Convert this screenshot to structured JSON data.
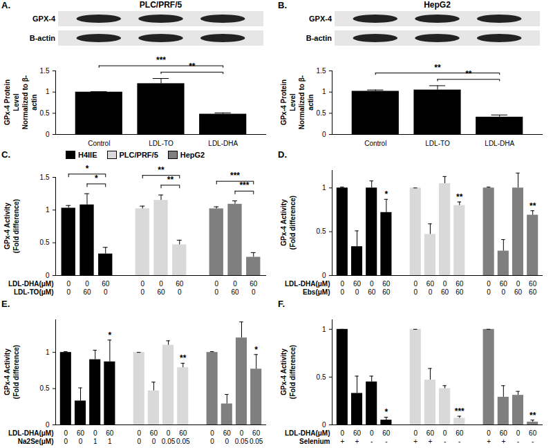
{
  "chart_data": [
    {
      "panel": "A.",
      "type": "bar",
      "title": "PLC/PRF/5",
      "blot_labels": [
        "GPX-4",
        "B-actin"
      ],
      "y_label": "GPx-4 Protein Level\nNormalized to β-actin",
      "categories": [
        "Control",
        "LDL-TO",
        "LDL-DHA"
      ],
      "values": [
        1.0,
        1.2,
        0.48
      ],
      "errors": [
        0.01,
        0.12,
        0.03
      ],
      "color": "#000000",
      "ylim": [
        0,
        1.5
      ],
      "yticks": [
        0,
        0.5,
        1,
        1.5
      ],
      "significance": [
        {
          "from": 0,
          "to": 2,
          "label": "***"
        },
        {
          "from": 1,
          "to": 2,
          "label": "**"
        }
      ]
    },
    {
      "panel": "B.",
      "type": "bar",
      "title": "HepG2",
      "blot_labels": [
        "GPX-4",
        "B-actin"
      ],
      "y_label": "GPx-4 Protein Level\nNormalized to β-actin",
      "categories": [
        "Control",
        "LDL-TO",
        "LDL-DHA"
      ],
      "values": [
        1.02,
        1.05,
        0.41
      ],
      "errors": [
        0.03,
        0.1,
        0.05
      ],
      "color": "#000000",
      "ylim": [
        0,
        1.5
      ],
      "yticks": [
        0,
        0.5,
        1,
        1.5
      ],
      "significance": [
        {
          "from": 0,
          "to": 2,
          "label": "**"
        },
        {
          "from": 1,
          "to": 2,
          "label": "**"
        }
      ]
    },
    {
      "panel": "C.",
      "type": "bar",
      "y_label": "GPx-4 Activity\n(Fold difference)",
      "legend": "top",
      "condition_labels": [
        "LDL-DHA(μM)",
        "LDL-TO(μM)"
      ],
      "ylim": [
        0,
        1.5
      ],
      "yticks": [
        0,
        0.5,
        1,
        1.5
      ],
      "series": [
        {
          "name": "H4IIE",
          "color": "#000000",
          "values": [
            1.03,
            1.08,
            0.33
          ],
          "errors": [
            0.04,
            0.17,
            0.1
          ],
          "conditions": [
            [
              "0",
              "0",
              "60"
            ],
            [
              "0",
              "60",
              "0"
            ]
          ],
          "significance": [
            {
              "from": 0,
              "to": 2,
              "label": "*"
            },
            {
              "from": 1,
              "to": 2,
              "label": "*"
            }
          ]
        },
        {
          "name": "PLC/PRF/5",
          "color": "#d9d9d9",
          "values": [
            1.02,
            1.15,
            0.47
          ],
          "errors": [
            0.04,
            0.08,
            0.07
          ],
          "conditions": [
            [
              "0",
              "0",
              "60"
            ],
            [
              "0",
              "60",
              "0"
            ]
          ],
          "significance": [
            {
              "from": 0,
              "to": 2,
              "label": "**"
            },
            {
              "from": 1,
              "to": 2,
              "label": "**"
            }
          ]
        },
        {
          "name": "HepG2",
          "color": "#7f7f7f",
          "values": [
            1.02,
            1.09,
            0.28
          ],
          "errors": [
            0.03,
            0.05,
            0.07
          ],
          "conditions": [
            [
              "0",
              "0",
              "60"
            ],
            [
              "0",
              "60",
              "0"
            ]
          ],
          "significance": [
            {
              "from": 0,
              "to": 2,
              "label": "***"
            },
            {
              "from": 1,
              "to": 2,
              "label": "***"
            }
          ]
        }
      ]
    },
    {
      "panel": "D.",
      "type": "bar",
      "y_label": "GPx-4 Activity\n(Fold difference)",
      "condition_labels": [
        "LDL-DHA(μM)",
        "Ebs(μM)"
      ],
      "ylim": [
        0,
        1.2
      ],
      "yticks": [
        0,
        0.5,
        1
      ],
      "series": [
        {
          "color": "#000000",
          "values": [
            1.0,
            0.33,
            1.0,
            0.72
          ],
          "errors": [
            0.01,
            0.18,
            0.08,
            0.15
          ],
          "conditions": [
            [
              "0",
              "60",
              "0",
              "60"
            ],
            [
              "0",
              "0",
              "60",
              "60"
            ]
          ],
          "significance": [
            {
              "from": 3,
              "to": 3,
              "label": "*"
            }
          ]
        },
        {
          "color": "#d9d9d9",
          "values": [
            1.0,
            0.47,
            1.05,
            0.8
          ],
          "errors": [
            0.0,
            0.12,
            0.08,
            0.04
          ],
          "conditions": [
            [
              "0",
              "60",
              "0",
              "60"
            ],
            [
              "0",
              "0",
              "60",
              "60"
            ]
          ],
          "significance": [
            {
              "from": 3,
              "to": 3,
              "label": "**"
            }
          ]
        },
        {
          "color": "#7f7f7f",
          "values": [
            1.0,
            0.28,
            1.0,
            0.69
          ],
          "errors": [
            0.01,
            0.13,
            0.17,
            0.05
          ],
          "conditions": [
            [
              "0",
              "60",
              "0",
              "60"
            ],
            [
              "0",
              "0",
              "60",
              "60"
            ]
          ],
          "significance": [
            {
              "from": 3,
              "to": 3,
              "label": "**"
            }
          ]
        }
      ]
    },
    {
      "panel": "E.",
      "type": "bar",
      "y_label": "GPx-4 Activity\n(Fold difference)",
      "condition_labels": [
        "LDL-DHA(μM)",
        "Na2Se(μM)"
      ],
      "ylim": [
        0,
        1.45
      ],
      "yticks": [
        0,
        0.5,
        1
      ],
      "series": [
        {
          "color": "#000000",
          "values": [
            1.0,
            0.33,
            0.9,
            0.87
          ],
          "errors": [
            0.01,
            0.18,
            0.13,
            0.3
          ],
          "conditions": [
            [
              "0",
              "60",
              "0",
              "60"
            ],
            [
              "0",
              "0",
              "1",
              "1"
            ]
          ],
          "significance": [
            {
              "from": 3,
              "to": 3,
              "label": "*"
            }
          ]
        },
        {
          "color": "#d9d9d9",
          "values": [
            1.0,
            0.47,
            1.1,
            0.79
          ],
          "errors": [
            0.0,
            0.12,
            0.06,
            0.06
          ],
          "conditions": [
            [
              "0",
              "60",
              "0",
              "60"
            ],
            [
              "0",
              "0",
              "0.05",
              "0.05"
            ]
          ],
          "significance": [
            {
              "from": 3,
              "to": 3,
              "label": "**"
            }
          ]
        },
        {
          "color": "#7f7f7f",
          "values": [
            1.0,
            0.29,
            1.2,
            0.77
          ],
          "errors": [
            0.01,
            0.13,
            0.22,
            0.2
          ],
          "conditions": [
            [
              "0",
              "60",
              "0",
              "60"
            ],
            [
              "0",
              "0",
              "0.05",
              "0.05"
            ]
          ],
          "significance": [
            {
              "from": 3,
              "to": 3,
              "label": "*"
            }
          ]
        }
      ]
    },
    {
      "panel": "F.",
      "type": "bar",
      "y_label": "GPx-4 Activity\n(Fold difference)",
      "condition_labels": [
        "LDL-DHA(μM)",
        "Selenium"
      ],
      "ylim": [
        0,
        1.1
      ],
      "yticks": [
        0,
        0.5,
        1
      ],
      "series": [
        {
          "color": "#000000",
          "values": [
            1.0,
            0.33,
            0.45,
            0.05
          ],
          "errors": [
            0.0,
            0.18,
            0.06,
            0.03
          ],
          "conditions": [
            [
              "0",
              "60",
              "0",
              "60"
            ],
            [
              "+",
              "+",
              "-",
              "-"
            ]
          ],
          "significance": [
            {
              "from": 3,
              "to": 3,
              "label": "*"
            }
          ]
        },
        {
          "color": "#d9d9d9",
          "values": [
            1.0,
            0.47,
            0.38,
            0.07
          ],
          "errors": [
            0.0,
            0.12,
            0.03,
            0.02
          ],
          "conditions": [
            [
              "0",
              "60",
              "0",
              "60"
            ],
            [
              "+",
              "+",
              "-",
              "-"
            ]
          ],
          "significance": [
            {
              "from": 3,
              "to": 3,
              "label": "***"
            }
          ]
        },
        {
          "color": "#7f7f7f",
          "values": [
            1.0,
            0.29,
            0.31,
            0.03
          ],
          "errors": [
            0.0,
            0.12,
            0.04,
            0.02
          ],
          "conditions": [
            [
              "0",
              "60",
              "0",
              "60"
            ],
            [
              "+",
              "+",
              "-",
              "-"
            ]
          ],
          "significance": [
            {
              "from": 3,
              "to": 3,
              "label": "**"
            }
          ]
        }
      ]
    }
  ]
}
